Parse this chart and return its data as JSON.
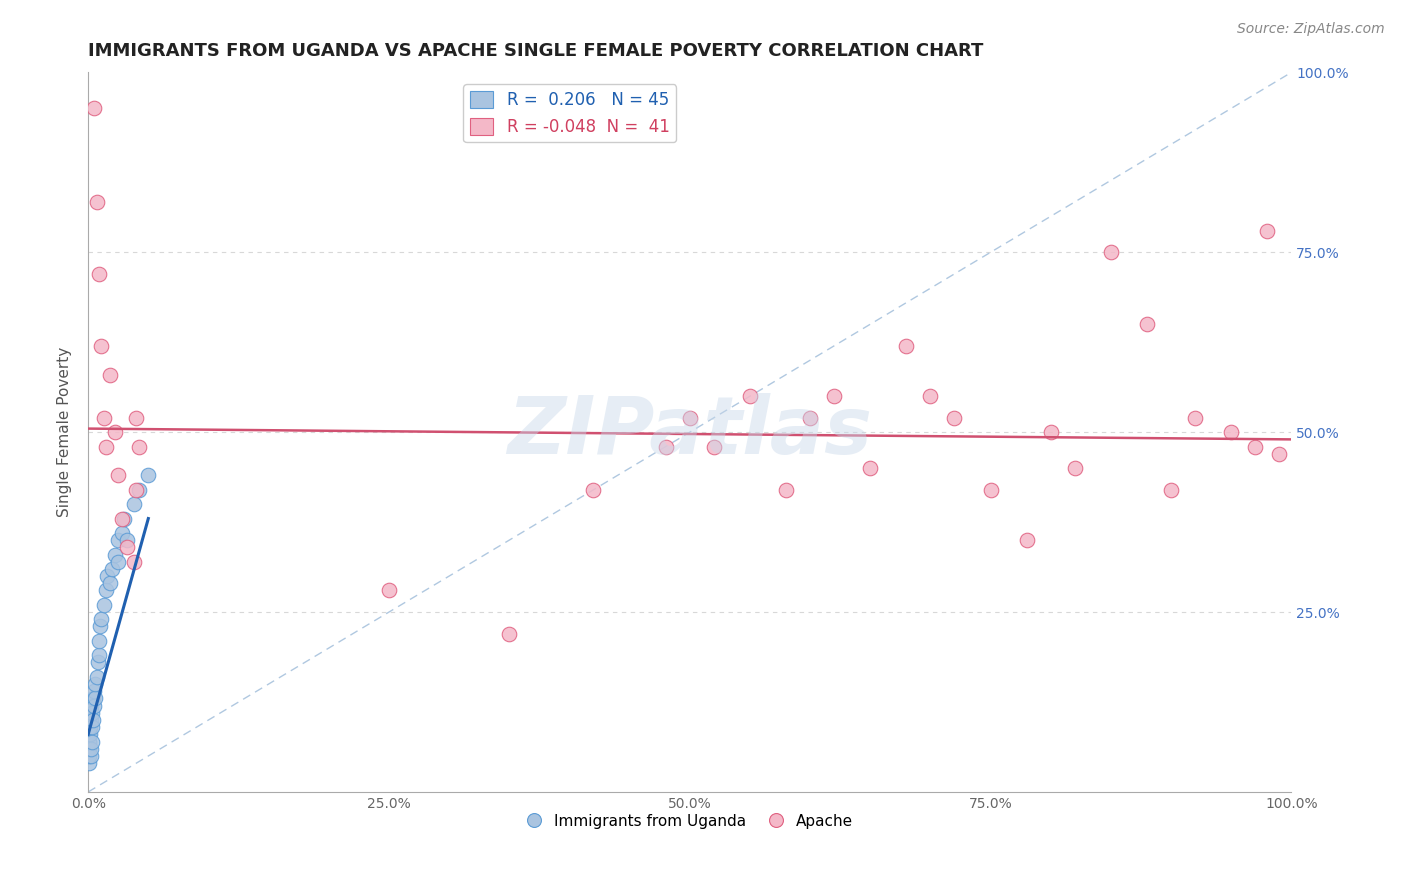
{
  "title": "IMMIGRANTS FROM UGANDA VS APACHE SINGLE FEMALE POVERTY CORRELATION CHART",
  "source_text": "Source: ZipAtlas.com",
  "ylabel": "Single Female Poverty",
  "xlim": [
    0,
    1
  ],
  "ylim": [
    0,
    1
  ],
  "xtick_labels": [
    "0.0%",
    "",
    "25.0%",
    "",
    "50.0%",
    "",
    "75.0%",
    "",
    "100.0%"
  ],
  "xtick_vals": [
    0,
    0.125,
    0.25,
    0.375,
    0.5,
    0.625,
    0.75,
    0.875,
    1.0
  ],
  "ytick_vals": [
    0,
    0.25,
    0.5,
    0.75,
    1.0
  ],
  "right_ytick_labels": [
    "",
    "25.0%",
    "50.0%",
    "75.0%",
    "100.0%"
  ],
  "legend_labels": [
    "Immigrants from Uganda",
    "Apache"
  ],
  "watermark": "ZIPatlas",
  "blue_color": "#aac4e0",
  "blue_edge": "#5b9bd5",
  "blue_trend": "#2060b0",
  "pink_color": "#f4b8c8",
  "pink_edge": "#e06080",
  "pink_trend": "#d05070",
  "ref_line_color": "#b0c8e0",
  "grid_color": "#d8d8d8",
  "background_color": "#ffffff",
  "title_fontsize": 13,
  "axis_label_fontsize": 11,
  "tick_fontsize": 10,
  "legend_fontsize": 11,
  "source_fontsize": 10,
  "R_blue": 0.206,
  "N_blue": 45,
  "R_pink": -0.048,
  "N_pink": 41,
  "blue_x": [
    0.0003,
    0.0004,
    0.0005,
    0.0006,
    0.0007,
    0.0008,
    0.001,
    0.001,
    0.001,
    0.0012,
    0.0015,
    0.0015,
    0.002,
    0.002,
    0.002,
    0.002,
    0.003,
    0.003,
    0.003,
    0.004,
    0.004,
    0.005,
    0.005,
    0.006,
    0.006,
    0.007,
    0.008,
    0.009,
    0.009,
    0.01,
    0.011,
    0.013,
    0.015,
    0.016,
    0.018,
    0.02,
    0.022,
    0.025,
    0.025,
    0.028,
    0.03,
    0.032,
    0.038,
    0.042,
    0.05
  ],
  "blue_y": [
    0.04,
    0.06,
    0.07,
    0.05,
    0.08,
    0.09,
    0.06,
    0.07,
    0.1,
    0.08,
    0.09,
    0.11,
    0.05,
    0.06,
    0.1,
    0.12,
    0.07,
    0.09,
    0.11,
    0.1,
    0.13,
    0.12,
    0.14,
    0.13,
    0.15,
    0.16,
    0.18,
    0.19,
    0.21,
    0.23,
    0.24,
    0.26,
    0.28,
    0.3,
    0.29,
    0.31,
    0.33,
    0.35,
    0.32,
    0.36,
    0.38,
    0.35,
    0.4,
    0.42,
    0.44
  ],
  "blue_trend_x": [
    0.0,
    0.05
  ],
  "blue_trend_y": [
    0.08,
    0.38
  ],
  "pink_x": [
    0.005,
    0.007,
    0.009,
    0.011,
    0.013,
    0.015,
    0.018,
    0.022,
    0.025,
    0.028,
    0.032,
    0.038,
    0.042,
    0.04,
    0.04,
    0.25,
    0.35,
    0.42,
    0.48,
    0.5,
    0.52,
    0.55,
    0.58,
    0.6,
    0.62,
    0.65,
    0.68,
    0.7,
    0.72,
    0.75,
    0.78,
    0.8,
    0.82,
    0.85,
    0.88,
    0.9,
    0.92,
    0.95,
    0.97,
    0.98,
    0.99
  ],
  "pink_y": [
    0.95,
    0.82,
    0.72,
    0.62,
    0.52,
    0.48,
    0.58,
    0.5,
    0.44,
    0.38,
    0.34,
    0.32,
    0.48,
    0.52,
    0.42,
    0.28,
    0.22,
    0.42,
    0.48,
    0.52,
    0.48,
    0.55,
    0.42,
    0.52,
    0.55,
    0.45,
    0.62,
    0.55,
    0.52,
    0.42,
    0.35,
    0.5,
    0.45,
    0.75,
    0.65,
    0.42,
    0.52,
    0.5,
    0.48,
    0.78,
    0.47
  ],
  "pink_trend_x": [
    0.0,
    1.0
  ],
  "pink_trend_y": [
    0.505,
    0.49
  ]
}
